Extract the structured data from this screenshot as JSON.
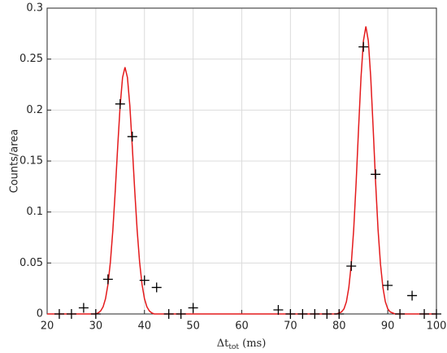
{
  "chart_data": {
    "type": "scatter",
    "xlabel": [
      "Δt",
      "tot",
      " (ms)"
    ],
    "ylabel": "Counts/area",
    "xlim": [
      20,
      100
    ],
    "ylim": [
      0,
      0.3
    ],
    "xticks": [
      20,
      30,
      40,
      50,
      60,
      70,
      80,
      90,
      100
    ],
    "yticks": [
      0,
      0.05,
      0.1,
      0.15,
      0.2,
      0.25,
      0.3
    ],
    "grid": true,
    "series": [
      {
        "type": "line",
        "color": "#e41a1c",
        "x": [
          20,
          30,
          30.5,
          31,
          31.5,
          32,
          32.5,
          33,
          33.5,
          34,
          34.5,
          35,
          35.5,
          36,
          36.5,
          37,
          37.5,
          38,
          38.5,
          39,
          39.5,
          40,
          40.5,
          41,
          41.5,
          42,
          79.5,
          80,
          80.5,
          81,
          81.5,
          82,
          82.5,
          83,
          83.5,
          84,
          84.5,
          85,
          85.5,
          86,
          86.5,
          87,
          87.5,
          88,
          88.5,
          89,
          89.5,
          90,
          90.5,
          91,
          91.5,
          100
        ],
        "values": [
          0,
          0,
          0.001,
          0.003,
          0.007,
          0.015,
          0.029,
          0.051,
          0.082,
          0.121,
          0.164,
          0.204,
          0.232,
          0.242,
          0.232,
          0.204,
          0.164,
          0.121,
          0.082,
          0.051,
          0.029,
          0.015,
          0.007,
          0.003,
          0.001,
          0,
          0,
          0.001,
          0.002,
          0.005,
          0.012,
          0.026,
          0.049,
          0.083,
          0.129,
          0.182,
          0.232,
          0.268,
          0.282,
          0.268,
          0.232,
          0.182,
          0.129,
          0.083,
          0.049,
          0.026,
          0.012,
          0.005,
          0.002,
          0.001,
          0,
          0
        ]
      },
      {
        "type": "scatter",
        "color": "#000000",
        "x": [
          22.5,
          25,
          27.5,
          30,
          32.5,
          35,
          37.5,
          40,
          42.5,
          45,
          47.5,
          50,
          67.5,
          70,
          72.5,
          75,
          77.5,
          80,
          82.5,
          85,
          87.5,
          90,
          92.5,
          95,
          97.5,
          100
        ],
        "values": [
          0,
          0,
          0.006,
          0,
          0.034,
          0.206,
          0.174,
          0.033,
          0.026,
          0,
          0,
          0.006,
          0.004,
          0,
          0,
          0,
          0,
          0,
          0.047,
          0.262,
          0.137,
          0.028,
          0,
          0.018,
          0,
          0
        ]
      }
    ]
  }
}
